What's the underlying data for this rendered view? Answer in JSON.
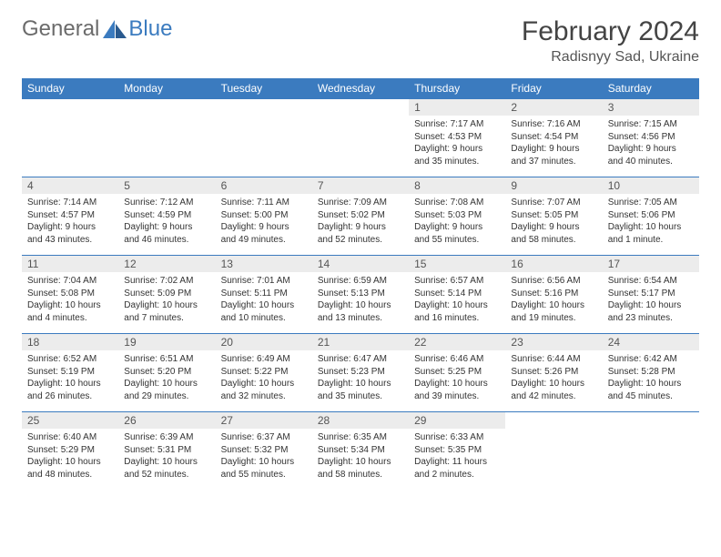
{
  "brand": {
    "name_gray": "General",
    "name_blue": "Blue"
  },
  "title": "February 2024",
  "location": "Radisnyy Sad, Ukraine",
  "colors": {
    "header_bg": "#3b7bbf",
    "header_text": "#ffffff",
    "daynum_bg": "#ececec",
    "border": "#3b7bbf",
    "body_text": "#333333",
    "logo_gray": "#6b6b6b",
    "logo_blue": "#3b7bbf"
  },
  "weekdays": [
    "Sunday",
    "Monday",
    "Tuesday",
    "Wednesday",
    "Thursday",
    "Friday",
    "Saturday"
  ],
  "weeks": [
    [
      null,
      null,
      null,
      null,
      {
        "day": "1",
        "sunrise": "Sunrise: 7:17 AM",
        "sunset": "Sunset: 4:53 PM",
        "daylight1": "Daylight: 9 hours",
        "daylight2": "and 35 minutes."
      },
      {
        "day": "2",
        "sunrise": "Sunrise: 7:16 AM",
        "sunset": "Sunset: 4:54 PM",
        "daylight1": "Daylight: 9 hours",
        "daylight2": "and 37 minutes."
      },
      {
        "day": "3",
        "sunrise": "Sunrise: 7:15 AM",
        "sunset": "Sunset: 4:56 PM",
        "daylight1": "Daylight: 9 hours",
        "daylight2": "and 40 minutes."
      }
    ],
    [
      {
        "day": "4",
        "sunrise": "Sunrise: 7:14 AM",
        "sunset": "Sunset: 4:57 PM",
        "daylight1": "Daylight: 9 hours",
        "daylight2": "and 43 minutes."
      },
      {
        "day": "5",
        "sunrise": "Sunrise: 7:12 AM",
        "sunset": "Sunset: 4:59 PM",
        "daylight1": "Daylight: 9 hours",
        "daylight2": "and 46 minutes."
      },
      {
        "day": "6",
        "sunrise": "Sunrise: 7:11 AM",
        "sunset": "Sunset: 5:00 PM",
        "daylight1": "Daylight: 9 hours",
        "daylight2": "and 49 minutes."
      },
      {
        "day": "7",
        "sunrise": "Sunrise: 7:09 AM",
        "sunset": "Sunset: 5:02 PM",
        "daylight1": "Daylight: 9 hours",
        "daylight2": "and 52 minutes."
      },
      {
        "day": "8",
        "sunrise": "Sunrise: 7:08 AM",
        "sunset": "Sunset: 5:03 PM",
        "daylight1": "Daylight: 9 hours",
        "daylight2": "and 55 minutes."
      },
      {
        "day": "9",
        "sunrise": "Sunrise: 7:07 AM",
        "sunset": "Sunset: 5:05 PM",
        "daylight1": "Daylight: 9 hours",
        "daylight2": "and 58 minutes."
      },
      {
        "day": "10",
        "sunrise": "Sunrise: 7:05 AM",
        "sunset": "Sunset: 5:06 PM",
        "daylight1": "Daylight: 10 hours",
        "daylight2": "and 1 minute."
      }
    ],
    [
      {
        "day": "11",
        "sunrise": "Sunrise: 7:04 AM",
        "sunset": "Sunset: 5:08 PM",
        "daylight1": "Daylight: 10 hours",
        "daylight2": "and 4 minutes."
      },
      {
        "day": "12",
        "sunrise": "Sunrise: 7:02 AM",
        "sunset": "Sunset: 5:09 PM",
        "daylight1": "Daylight: 10 hours",
        "daylight2": "and 7 minutes."
      },
      {
        "day": "13",
        "sunrise": "Sunrise: 7:01 AM",
        "sunset": "Sunset: 5:11 PM",
        "daylight1": "Daylight: 10 hours",
        "daylight2": "and 10 minutes."
      },
      {
        "day": "14",
        "sunrise": "Sunrise: 6:59 AM",
        "sunset": "Sunset: 5:13 PM",
        "daylight1": "Daylight: 10 hours",
        "daylight2": "and 13 minutes."
      },
      {
        "day": "15",
        "sunrise": "Sunrise: 6:57 AM",
        "sunset": "Sunset: 5:14 PM",
        "daylight1": "Daylight: 10 hours",
        "daylight2": "and 16 minutes."
      },
      {
        "day": "16",
        "sunrise": "Sunrise: 6:56 AM",
        "sunset": "Sunset: 5:16 PM",
        "daylight1": "Daylight: 10 hours",
        "daylight2": "and 19 minutes."
      },
      {
        "day": "17",
        "sunrise": "Sunrise: 6:54 AM",
        "sunset": "Sunset: 5:17 PM",
        "daylight1": "Daylight: 10 hours",
        "daylight2": "and 23 minutes."
      }
    ],
    [
      {
        "day": "18",
        "sunrise": "Sunrise: 6:52 AM",
        "sunset": "Sunset: 5:19 PM",
        "daylight1": "Daylight: 10 hours",
        "daylight2": "and 26 minutes."
      },
      {
        "day": "19",
        "sunrise": "Sunrise: 6:51 AM",
        "sunset": "Sunset: 5:20 PM",
        "daylight1": "Daylight: 10 hours",
        "daylight2": "and 29 minutes."
      },
      {
        "day": "20",
        "sunrise": "Sunrise: 6:49 AM",
        "sunset": "Sunset: 5:22 PM",
        "daylight1": "Daylight: 10 hours",
        "daylight2": "and 32 minutes."
      },
      {
        "day": "21",
        "sunrise": "Sunrise: 6:47 AM",
        "sunset": "Sunset: 5:23 PM",
        "daylight1": "Daylight: 10 hours",
        "daylight2": "and 35 minutes."
      },
      {
        "day": "22",
        "sunrise": "Sunrise: 6:46 AM",
        "sunset": "Sunset: 5:25 PM",
        "daylight1": "Daylight: 10 hours",
        "daylight2": "and 39 minutes."
      },
      {
        "day": "23",
        "sunrise": "Sunrise: 6:44 AM",
        "sunset": "Sunset: 5:26 PM",
        "daylight1": "Daylight: 10 hours",
        "daylight2": "and 42 minutes."
      },
      {
        "day": "24",
        "sunrise": "Sunrise: 6:42 AM",
        "sunset": "Sunset: 5:28 PM",
        "daylight1": "Daylight: 10 hours",
        "daylight2": "and 45 minutes."
      }
    ],
    [
      {
        "day": "25",
        "sunrise": "Sunrise: 6:40 AM",
        "sunset": "Sunset: 5:29 PM",
        "daylight1": "Daylight: 10 hours",
        "daylight2": "and 48 minutes."
      },
      {
        "day": "26",
        "sunrise": "Sunrise: 6:39 AM",
        "sunset": "Sunset: 5:31 PM",
        "daylight1": "Daylight: 10 hours",
        "daylight2": "and 52 minutes."
      },
      {
        "day": "27",
        "sunrise": "Sunrise: 6:37 AM",
        "sunset": "Sunset: 5:32 PM",
        "daylight1": "Daylight: 10 hours",
        "daylight2": "and 55 minutes."
      },
      {
        "day": "28",
        "sunrise": "Sunrise: 6:35 AM",
        "sunset": "Sunset: 5:34 PM",
        "daylight1": "Daylight: 10 hours",
        "daylight2": "and 58 minutes."
      },
      {
        "day": "29",
        "sunrise": "Sunrise: 6:33 AM",
        "sunset": "Sunset: 5:35 PM",
        "daylight1": "Daylight: 11 hours",
        "daylight2": "and 2 minutes."
      },
      null,
      null
    ]
  ]
}
